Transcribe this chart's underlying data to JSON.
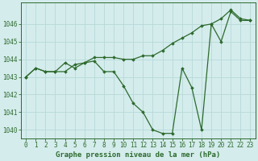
{
  "title": "Graphe pression niveau de la mer (hPa)",
  "x_labels": [
    0,
    1,
    2,
    3,
    4,
    5,
    6,
    7,
    8,
    9,
    10,
    11,
    12,
    13,
    14,
    15,
    16,
    17,
    18,
    19,
    20,
    21,
    22,
    23
  ],
  "series1": [
    1043.0,
    1043.5,
    1043.3,
    1043.3,
    1043.8,
    1043.5,
    1043.8,
    1043.9,
    1043.3,
    1043.3,
    1042.5,
    1041.5,
    1041.0,
    1040.0,
    1039.8,
    1039.8,
    1043.5,
    1042.4,
    1040.0,
    1046.0,
    1045.0,
    1046.7,
    1046.2,
    1046.2
  ],
  "series2": [
    1043.0,
    1043.5,
    1043.3,
    1043.3,
    1043.3,
    1043.7,
    1043.8,
    1044.1,
    1044.1,
    1044.1,
    1044.0,
    1044.0,
    1044.2,
    1044.2,
    1044.5,
    1044.9,
    1045.2,
    1045.5,
    1045.9,
    1046.0,
    1046.3,
    1046.8,
    1046.3,
    1046.2
  ],
  "line_color": "#2d6a2d",
  "marker_color": "#2d6a2d",
  "bg_color": "#d4ecec",
  "grid_color": "#b8d8d8",
  "text_color": "#2d6a2d",
  "ylim": [
    1039.5,
    1047.2
  ],
  "yticks": [
    1040,
    1041,
    1042,
    1043,
    1044,
    1045,
    1046
  ],
  "title_fontsize": 7.0,
  "tick_fontsize": 5.5,
  "xlabel_fontsize": 6.5
}
